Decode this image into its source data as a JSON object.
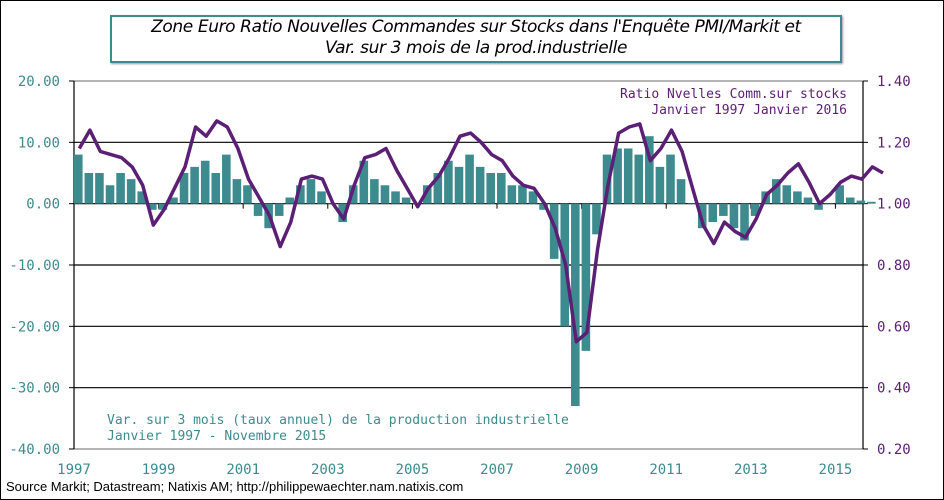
{
  "chart_data": {
    "type": "bar+line",
    "title_line1": "Zone Euro Ratio Nouvelles  Commandes sur Stocks dans l'Enquête PMI/Markit  et",
    "title_line2": "Var. sur 3 mois  de la prod.industrielle",
    "x_ticks": [
      "1997",
      "1999",
      "2001",
      "2003",
      "2005",
      "2007",
      "2009",
      "2011",
      "2013",
      "2015"
    ],
    "left_axis": {
      "ylim": [
        -40,
        20
      ],
      "ticks": [
        "20.00",
        "10.00",
        "0.00",
        "-10.00",
        "-20.00",
        "-30.00",
        "-40.00"
      ],
      "color": "#3d8b8e"
    },
    "right_axis": {
      "ylim": [
        0.2,
        1.4
      ],
      "ticks": [
        "1.40",
        "1.20",
        "1.00",
        "0.80",
        "0.60",
        "0.40",
        "0.20"
      ],
      "color": "#5b1f75"
    },
    "grid": true,
    "bar_series": {
      "label_line1": "Var. sur 3 mois (taux annuel) de la production industrielle",
      "label_line2": "Janvier 1997 - Novembre 2015",
      "color": "#3d8b8e",
      "start": "1997-Q1",
      "values": [
        8,
        5,
        5,
        3,
        5,
        4,
        2,
        -1,
        -1,
        1,
        5,
        6,
        7,
        5,
        8,
        4,
        3,
        -2,
        -4,
        -2,
        1,
        3,
        4,
        2,
        0,
        -3,
        3,
        7,
        4,
        3,
        2,
        1,
        0,
        3,
        5,
        7,
        6,
        8,
        6,
        5,
        5,
        3,
        3,
        2,
        -1,
        -9,
        -20,
        -33,
        -24,
        -5,
        8,
        9,
        9,
        8,
        11,
        6,
        8,
        4,
        0,
        -4,
        -3,
        -2,
        -4,
        -6,
        -2,
        2,
        4,
        3,
        2,
        1,
        -1,
        0,
        3,
        1,
        0.5,
        0.3
      ]
    },
    "line_series": {
      "label_line1": "Ratio Nvelles Comm.sur stocks",
      "label_line2": "Janvier 1997  Janvier 2016",
      "color": "#5b1f75",
      "start": "1997-Q1",
      "values": [
        1.18,
        1.24,
        1.17,
        1.16,
        1.15,
        1.12,
        1.06,
        0.93,
        0.98,
        1.05,
        1.12,
        1.25,
        1.22,
        1.27,
        1.25,
        1.18,
        1.08,
        1.02,
        0.96,
        0.86,
        0.94,
        1.08,
        1.09,
        1.08,
        1.0,
        0.95,
        1.06,
        1.15,
        1.16,
        1.18,
        1.11,
        1.05,
        0.99,
        1.05,
        1.09,
        1.15,
        1.22,
        1.23,
        1.2,
        1.16,
        1.14,
        1.09,
        1.06,
        1.05,
        1.0,
        0.92,
        0.8,
        0.55,
        0.58,
        0.85,
        1.06,
        1.23,
        1.25,
        1.26,
        1.14,
        1.18,
        1.24,
        1.17,
        1.05,
        0.93,
        0.87,
        0.94,
        0.91,
        0.89,
        0.95,
        1.03,
        1.06,
        1.1,
        1.13,
        1.07,
        1.0,
        1.03,
        1.07,
        1.09,
        1.08,
        1.12,
        1.1
      ]
    }
  },
  "source": "Source Markit; Datastream; Natixis AM; http://philippewaechter.nam.natixis.com"
}
